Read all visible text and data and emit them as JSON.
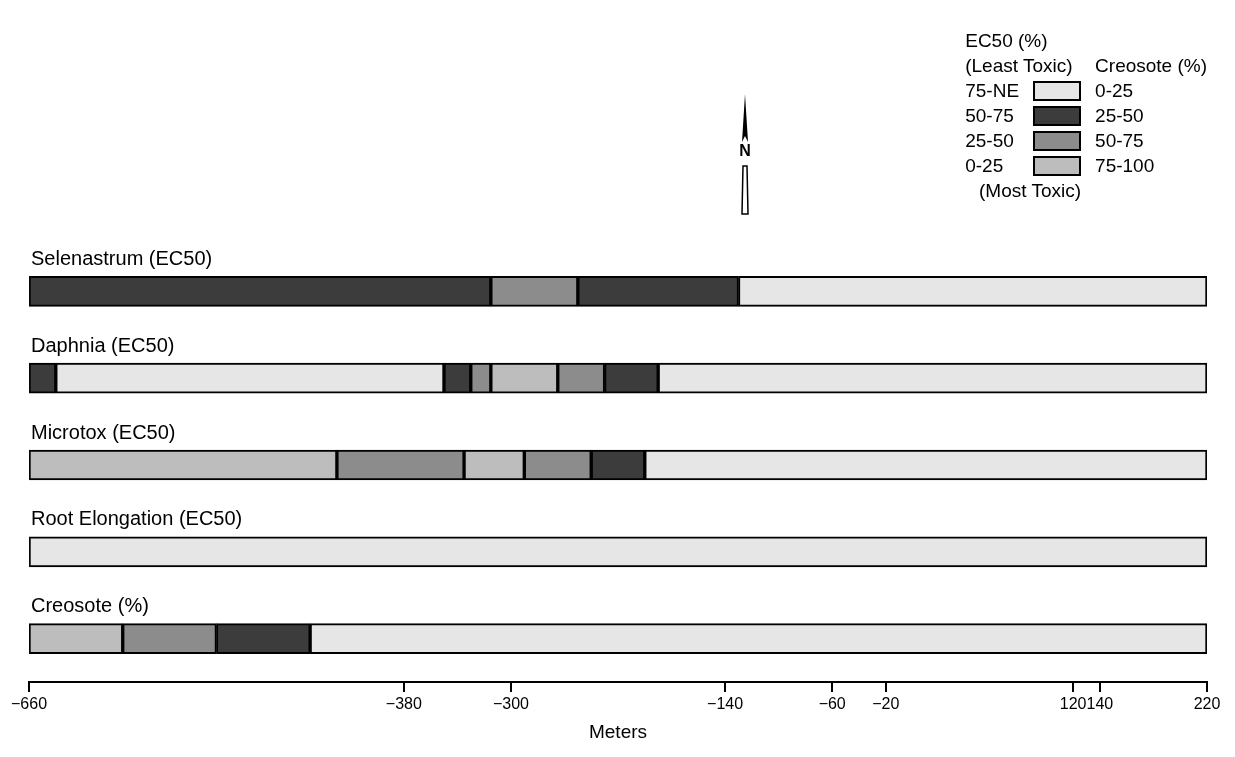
{
  "chart_data": {
    "type": "bar",
    "orientation": "horizontal",
    "xlabel": "Meters",
    "legend_title": "EC50 (%)",
    "legend": "top right",
    "categories": [
      "Selenastrum (EC50)",
      "Daphnia (EC50)",
      "Microtox (EC50)",
      "Root Elongation (EC50)",
      "Creosote (%)"
    ],
    "xlim": [
      -660,
      220
    ],
    "xticks": [
      -660,
      -380,
      -300,
      -140,
      -60,
      -20,
      120,
      140,
      220
    ],
    "annotations": [
      "N",
      "(Least Toxic)",
      "Creosote (%)",
      "(Most Toxic)",
      "0-25",
      "25-50",
      "50-75",
      "75-100"
    ],
    "series": [
      {
        "name": "75-NE",
        "color": "#e6e6e6",
        "base": [
          -130,
          -640,
          -200,
          -660,
          -450
        ],
        "values": [
          350,
          290,
          420,
          880,
          670
        ]
      },
      {
        "name": "50-75",
        "color": "#3c3c3c",
        "base": [
          -660,
          -660,
          -240,
          null,
          -520
        ],
        "values": [
          345,
          20,
          40,
          null,
          70
        ]
      },
      {
        "name": "25-50",
        "color": "#8c8c8c",
        "base": [
          -315,
          -330,
          -430,
          null,
          -590
        ],
        "values": [
          65,
          15,
          95,
          null,
          70
        ]
      },
      {
        "name": "0-25",
        "color": "#bdbdbd",
        "base": [
          null,
          -315,
          -660,
          null,
          -660
        ],
        "values": [
          null,
          50,
          230,
          null,
          70
        ]
      },
      {
        "color": "#e6e6e6",
        "base": [
          null,
          -190,
          null,
          null,
          null
        ],
        "values": [
          null,
          410,
          null,
          null,
          null
        ]
      },
      {
        "color": "#3c3c3c",
        "base": [
          -250,
          -350,
          null,
          null,
          null
        ],
        "values": [
          120,
          20,
          null,
          null,
          null
        ]
      },
      {
        "color": "#3c3c3c",
        "base": [
          null,
          -230,
          null,
          null,
          null
        ],
        "values": [
          null,
          40,
          null,
          null,
          null
        ]
      },
      {
        "color": "#8c8c8c",
        "base": [
          null,
          -265,
          -290,
          null,
          null
        ],
        "values": [
          null,
          35,
          50,
          null,
          null
        ]
      },
      {
        "color": "#bdbdbd",
        "base": [
          null,
          null,
          -335,
          null,
          null
        ],
        "values": [
          null,
          null,
          45,
          null,
          null
        ]
      }
    ]
  }
}
